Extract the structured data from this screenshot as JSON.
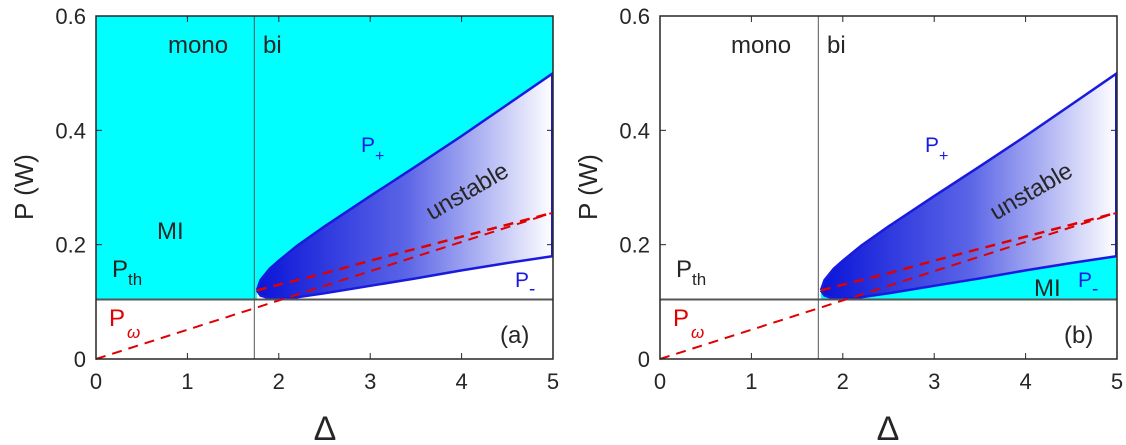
{
  "chart_data": [
    {
      "type": "area",
      "panel_label": "(a)",
      "xlabel": "Δ",
      "ylabel": "P (W)",
      "xlim": [
        0,
        5
      ],
      "ylim": [
        0,
        0.6
      ],
      "xticks": [
        "0",
        "1",
        "2",
        "3",
        "4",
        "5"
      ],
      "yticks": [
        "0",
        "0.2",
        "0.4",
        "0.6"
      ],
      "delta_threshold": 1.732,
      "P_th": 0.104,
      "series": [
        {
          "role": "upper-branch",
          "label": "P+",
          "x": [
            1.76,
            1.8,
            1.9,
            2.0,
            2.2,
            2.5,
            3.0,
            3.5,
            4.0,
            4.5,
            5.0
          ],
          "y": [
            0.12,
            0.138,
            0.158,
            0.172,
            0.198,
            0.232,
            0.285,
            0.337,
            0.39,
            0.445,
            0.5
          ]
        },
        {
          "role": "lower-branch",
          "label": "P-",
          "x": [
            1.76,
            1.8,
            1.9,
            2.0,
            2.2,
            2.5,
            3.0,
            3.5,
            4.0,
            4.5,
            5.0
          ],
          "y": [
            0.12,
            0.111,
            0.106,
            0.105,
            0.108,
            0.115,
            0.128,
            0.141,
            0.155,
            0.168,
            0.18
          ]
        },
        {
          "role": "middle-branch",
          "x": [
            1.76,
            2.0,
            2.5,
            3.0,
            3.5,
            4.0,
            4.5,
            5.0
          ],
          "y": [
            0.12,
            0.13,
            0.15,
            0.172,
            0.193,
            0.214,
            0.235,
            0.256
          ]
        },
        {
          "role": "P_omega",
          "label": "Pω",
          "x": [
            0,
            5
          ],
          "y": [
            0,
            0.256
          ]
        }
      ],
      "mi_region": "above P_th for Δ < √3, and outside the upper branch for Δ > √3",
      "annotations": {
        "mono": "mono",
        "bi": "bi",
        "mi": "MI",
        "unstable": "unstable",
        "p_th": "P",
        "p_th_sub": "th",
        "p_plus": "P",
        "p_plus_sub": "+",
        "p_minus": "P",
        "p_minus_sub": "-",
        "p_omega": "P",
        "p_omega_sub": "ω"
      }
    },
    {
      "type": "area",
      "panel_label": "(b)",
      "xlabel": "Δ",
      "ylabel": "P (W)",
      "xlim": [
        0,
        5
      ],
      "ylim": [
        0,
        0.6
      ],
      "xticks": [
        "0",
        "1",
        "2",
        "3",
        "4",
        "5"
      ],
      "yticks": [
        "0",
        "0.2",
        "0.4",
        "0.6"
      ],
      "delta_threshold": 1.732,
      "P_th": 0.104,
      "series": [
        {
          "role": "upper-branch",
          "label": "P+",
          "x": [
            1.76,
            1.8,
            1.9,
            2.0,
            2.2,
            2.5,
            3.0,
            3.5,
            4.0,
            4.5,
            5.0
          ],
          "y": [
            0.12,
            0.138,
            0.158,
            0.172,
            0.198,
            0.232,
            0.285,
            0.337,
            0.39,
            0.445,
            0.5
          ]
        },
        {
          "role": "lower-branch",
          "label": "P-",
          "x": [
            1.76,
            1.8,
            1.9,
            2.0,
            2.2,
            2.5,
            3.0,
            3.5,
            4.0,
            4.5,
            5.0
          ],
          "y": [
            0.12,
            0.111,
            0.106,
            0.105,
            0.108,
            0.115,
            0.128,
            0.141,
            0.155,
            0.168,
            0.18
          ]
        },
        {
          "role": "middle-branch",
          "x": [
            1.76,
            2.0,
            2.5,
            3.0,
            3.5,
            4.0,
            4.5,
            5.0
          ],
          "y": [
            0.12,
            0.13,
            0.15,
            0.172,
            0.193,
            0.214,
            0.235,
            0.256
          ]
        },
        {
          "role": "P_omega",
          "label": "Pω",
          "x": [
            0,
            5
          ],
          "y": [
            0,
            0.256
          ]
        }
      ],
      "mi_region": "between P_th and the lower branch for Δ > √3",
      "annotations": {
        "mono": "mono",
        "bi": "bi",
        "mi": "MI",
        "unstable": "unstable",
        "p_th": "P",
        "p_th_sub": "th",
        "p_plus": "P",
        "p_plus_sub": "+",
        "p_minus": "P",
        "p_minus_sub": "-",
        "p_omega": "P",
        "p_omega_sub": "ω"
      }
    }
  ],
  "colors": {
    "mi_fill": "#00ffff",
    "branch": "#1a1adf",
    "unstable_dark": "#0a14d8",
    "unstable_light": "#ffffff",
    "p_omega": "#e00000",
    "axis": "#262626",
    "threshold_line": "#555555"
  }
}
